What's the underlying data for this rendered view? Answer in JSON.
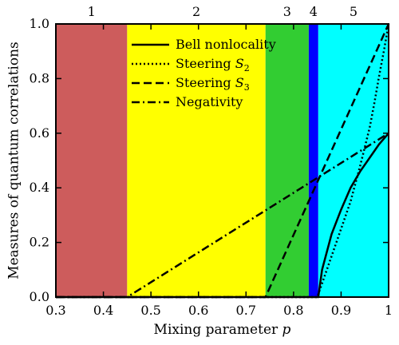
{
  "chart_data": {
    "type": "line",
    "xlabel": "Mixing parameter p",
    "ylabel": "Measures of quantum correlations",
    "xlim": [
      0.3,
      1.0
    ],
    "ylim": [
      0.0,
      1.0
    ],
    "xticks": [
      0.3,
      0.4,
      0.5,
      0.6,
      0.7,
      0.8,
      0.9,
      1.0
    ],
    "xtick_labels": [
      "0.3",
      "0.4",
      "0.5",
      "0.6",
      "0.7",
      "0.8",
      "0.9",
      "1"
    ],
    "yticks": [
      0.0,
      0.2,
      0.4,
      0.6,
      0.8,
      1.0
    ],
    "ytick_labels": [
      "0.0",
      "0.2",
      "0.4",
      "0.6",
      "0.8",
      "1.0"
    ],
    "grid": false,
    "legend_position": "top",
    "regions": [
      {
        "label": "1",
        "x_start": 0.3,
        "x_end": 0.45,
        "color": "#cd5c5c"
      },
      {
        "label": "2",
        "x_start": 0.45,
        "x_end": 0.741,
        "color": "#ffff00"
      },
      {
        "label": "3",
        "x_start": 0.741,
        "x_end": 0.832,
        "color": "#32cd32"
      },
      {
        "label": "4",
        "x_start": 0.832,
        "x_end": 0.852,
        "color": "#0000ff"
      },
      {
        "label": "5",
        "x_start": 0.852,
        "x_end": 1.0,
        "color": "#00ffff"
      }
    ],
    "series": [
      {
        "name": "Bell nonlocality",
        "line_style": "solid",
        "x": [
          0.3,
          0.852,
          0.86,
          0.88,
          0.9,
          0.92,
          0.94,
          0.96,
          0.98,
          1.0
        ],
        "y": [
          0.0,
          0.0,
          0.1,
          0.23,
          0.32,
          0.4,
          0.46,
          0.51,
          0.56,
          0.6
        ]
      },
      {
        "name": "Steering S_2",
        "line_style": "dotted",
        "x": [
          0.3,
          0.85,
          0.89,
          0.92,
          0.94,
          0.96,
          0.97,
          0.98,
          0.99,
          1.0
        ],
        "y": [
          0.0,
          0.0,
          0.2,
          0.35,
          0.48,
          0.62,
          0.71,
          0.81,
          0.9,
          1.0
        ]
      },
      {
        "name": "Steering S_3",
        "line_style": "dashed",
        "x": [
          0.3,
          0.741,
          1.0
        ],
        "y": [
          0.0,
          0.0,
          1.0
        ]
      },
      {
        "name": "Negativity",
        "line_style": "dash-dot",
        "x": [
          0.3,
          0.45,
          1.0
        ],
        "y": [
          0.0,
          0.0,
          0.6
        ]
      }
    ]
  }
}
